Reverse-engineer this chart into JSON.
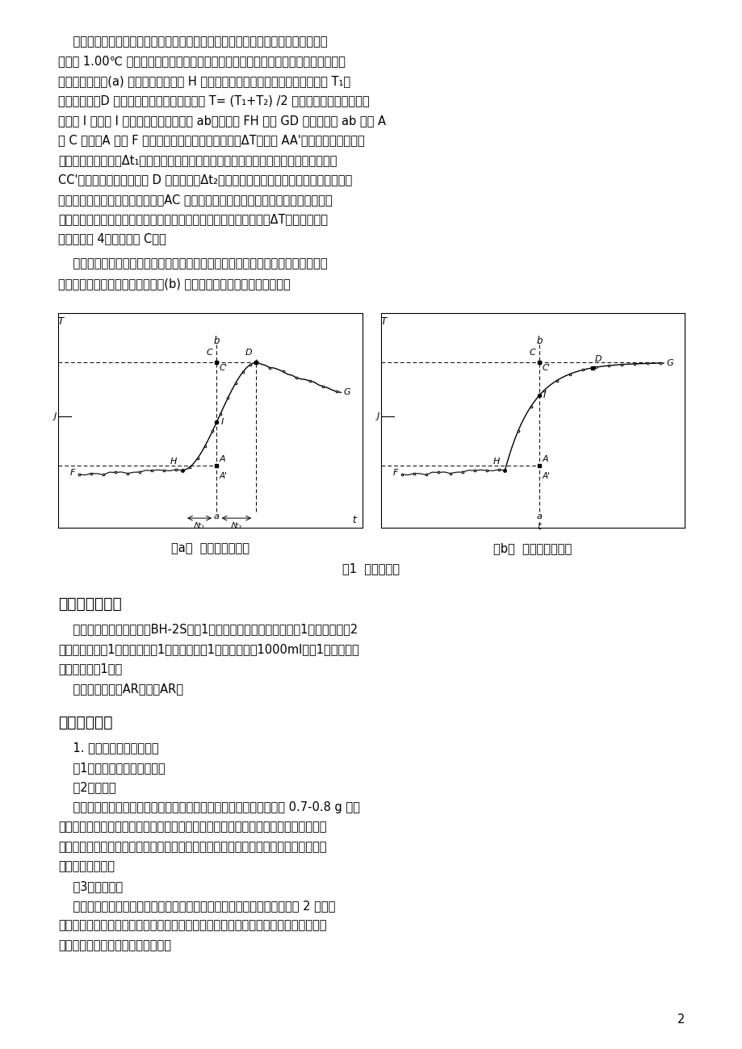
{
  "bg_color": "#ffffff",
  "page_width": 9.2,
  "page_height": 13.0,
  "lines_p1": [
    "    可以使用雷诺作图法校正温度变化值。称取适量待测物质。预先调节水温使水温比",
    "室温低 1.00℃ 左右。按操作步骤进行测定，将燃烧前后观察所得的水温和时间关系作",
    "图。得到如图１(a) 所示的曲线。图中 H 点相当于燃烧开始时出现升温点，温度为 T₁，",
    "热传入介质；D 点为读数中的最高温度点，在 T= (T₁+T₂) /2 处作平行于横轴的直线交",
    "曲线于 I 点，过 I 点作垂直于横轴的直线 ab，然后将 FH 线和 GD 线外延长交 ab 线于 A",
    "和 C 两点。A 点与 F 点的温差为校正后的温度升高值ΔT。图中 AA'为开始燃烧到温度上",
    "升至室温这一段时间Δt₁内，由环境辐射和搔拌引进的能量所造成的升温，故应予扣除。",
    "CC'为由室温升高到最高点 D 这一段时间Δt₂内，热量计向环境的热漏造成的温度降低，",
    "计算时必须考虑在内。故可认为，AC 两点的差值较客观地表示了样品燃烧引起的升温",
    "数值。即为苯甲酸燃烧所引起的温度升高值，用同样方法求萌燃烧的ΔT，苯甲酸实验",
    "数据代入式 4，即可求得 C总。"
  ],
  "lines_p2": [
    "    在某些情况下，有时量热计绝热情况良好，而搔拌器功率较大，不断引进的能量使",
    "得曲线不出现极高温度点，如图１(b) 所示，这时仍可按相同原理校正。"
  ],
  "fig_caption_a": "（a）  绝热较差的系统",
  "fig_caption_b": "（b）  绝热较好的系统",
  "fig_title": "图1  温度校正图",
  "section3_title": "三、仪器和试剂",
  "lines_s3": [
    "    仪器：燃烧热测定装置（BH-2S），1台；氧气钓瓶（附氧气表），1个；压片机，2",
    "台；电子天平，1台；万用表，1个；小镊子，1个；容量瓶（1000ml），1个；镁丝，",
    "若干；尺子，1把；",
    "    试剂：苯甲酸，AR；萌，AR。"
  ],
  "section4_title": "四、实验步骤",
  "lines_s4": [
    "    1. 量热体系的总热容量。",
    "    （1）洗净量热计和其附件。",
    "    （2）压片。",
    "    取燃烧丝量取长度，绕成小线圈。将其放在燃烧杯中称重。粗称大约 0.7-0.8 g 苯甲",
    "酸，把燃烧丝放在苯甲酸中用标压片机上压成片。样片不要压得太紧，太紧点火时可能",
    "不会全部燃烧；也不要压得太松，太松样品易脱落。把样片放在燃烧杯中再次称重，计",
    "算苯甲酸的重量。",
    "    （3）充氧气。",
    "    把燃烧杯放在燃烧杯托架上。把燃烧丝的两头缠绕在氧弹的电极上，如图 2 所示。",
    "用万用电表检查两极间电阵值。将弹头放入弹杯中并拧紧。用万用电表再次测量两电极",
    "间的电阵，电子变化不大则可充氧。"
  ],
  "page_number": "2"
}
